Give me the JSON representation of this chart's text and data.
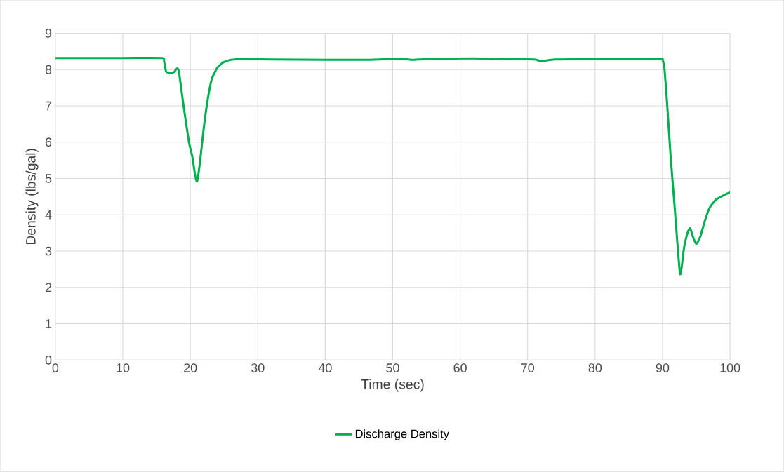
{
  "chart_data": {
    "type": "line",
    "xlabel": "Time (sec)",
    "ylabel": "Density (lbs/gal)",
    "xlim": [
      0,
      100
    ],
    "xticks": [
      0,
      10,
      20,
      30,
      40,
      50,
      60,
      70,
      80,
      90,
      100
    ],
    "ylim": [
      0,
      9
    ],
    "yticks": [
      0,
      1,
      2,
      3,
      4,
      5,
      6,
      7,
      8,
      9
    ],
    "grid": true,
    "legend": "bottom",
    "series": [
      {
        "name": "Discharge Density",
        "color": "#00b050",
        "x": [
          0,
          10,
          15.8,
          16.1,
          16.4,
          17.0,
          17.6,
          18.0,
          18.3,
          19.0,
          19.8,
          20.3,
          20.7,
          21.0,
          21.4,
          22.0,
          22.6,
          23.2,
          24.0,
          24.9,
          26.0,
          28.0,
          32,
          40,
          46,
          51,
          53,
          55,
          62,
          67,
          71,
          72,
          74,
          80,
          89.5,
          90.0,
          90.3,
          90.7,
          91.2,
          91.8,
          92.6,
          93.2,
          93.7,
          94.1,
          94.5,
          95.0,
          95.6,
          96.3,
          97.0,
          98.0,
          100
        ],
        "values": [
          8.32,
          8.32,
          8.32,
          8.25,
          7.95,
          7.9,
          7.93,
          8.03,
          7.95,
          7.0,
          6.0,
          5.6,
          5.1,
          4.92,
          5.4,
          6.4,
          7.2,
          7.75,
          8.05,
          8.2,
          8.27,
          8.29,
          8.28,
          8.27,
          8.27,
          8.3,
          8.27,
          8.29,
          8.31,
          8.29,
          8.28,
          8.23,
          8.28,
          8.29,
          8.29,
          8.27,
          8.0,
          7.0,
          5.6,
          4.2,
          2.37,
          3.1,
          3.5,
          3.63,
          3.4,
          3.19,
          3.4,
          3.85,
          4.2,
          4.43,
          4.62
        ]
      }
    ]
  }
}
